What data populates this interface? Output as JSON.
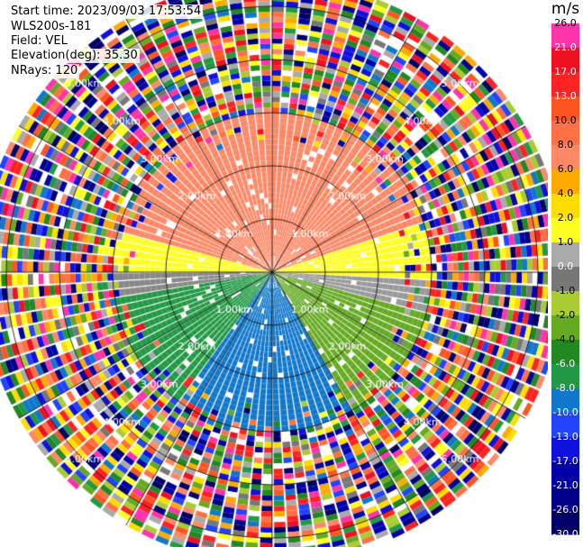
{
  "header": {
    "start_time": "Start time: 2023/09/03 17:53:54",
    "instrument": "WLS200s-181",
    "field": "Field: VEL",
    "elevation": "Elevation(deg): 35.30",
    "nrays": "NRays: 120"
  },
  "chart_data": {
    "type": "heatmap",
    "projection": "polar PPI",
    "field": "VEL",
    "unit": "m/s",
    "rays": 120,
    "range_rings_km": [
      1.0,
      2.0,
      3.0,
      4.0,
      5.0
    ],
    "range_ring_labels": [
      "1.00km",
      "2.00km",
      "3.00km",
      "4.00km",
      "5.00km"
    ],
    "max_range_km": 5.5,
    "colorbar_ticks": [
      "26.0",
      "21.0",
      "17.0",
      "13.0",
      "10.0",
      "8.0",
      "6.0",
      "4.0",
      "2.0",
      "1.0",
      "0.0",
      "-1.0",
      "-2.0",
      "-4.0",
      "-6.0",
      "-8.0",
      "-10.0",
      "-13.0",
      "-17.0",
      "-21.0",
      "-26.0",
      "-30.0"
    ],
    "colorbar_colors": [
      "#ff33aa",
      "#ee1122",
      "#ff2222",
      "#ff5522",
      "#ff7044",
      "#ff8866",
      "#ffaa00",
      "#ffdd00",
      "#ffff22",
      "#aaaaaa",
      "#777777",
      "#aacc33",
      "#66aa22",
      "#228822",
      "#229944",
      "#1177cc",
      "#2244ff",
      "#1111dd",
      "#0000aa",
      "#000088",
      "#000066"
    ],
    "ray_colors_by_bearing_deg": [
      {
        "from": 285,
        "to": 360,
        "color": "#ff8866"
      },
      {
        "from": 0,
        "to": 70,
        "color": "#ff8866"
      },
      {
        "from": 70,
        "to": 92,
        "color": "#ffff22"
      },
      {
        "from": 92,
        "to": 105,
        "color": "#999999"
      },
      {
        "from": 105,
        "to": 150,
        "color": "#66aa22"
      },
      {
        "from": 150,
        "to": 215,
        "color": "#1177cc"
      },
      {
        "from": 215,
        "to": 260,
        "color": "#229944"
      },
      {
        "from": 260,
        "to": 270,
        "color": "#888888"
      },
      {
        "from": 270,
        "to": 285,
        "color": "#ffff22"
      }
    ],
    "valid_range_km": 3.0
  }
}
